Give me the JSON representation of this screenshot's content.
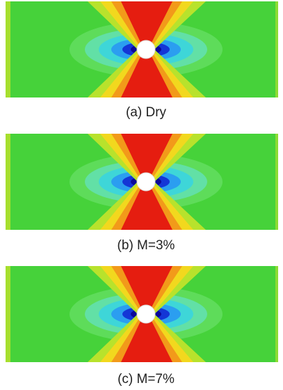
{
  "panels": [
    {
      "caption": "(a) Dry"
    },
    {
      "caption": "(b) M=3%"
    },
    {
      "caption": "(c) M=7%"
    }
  ]
}
